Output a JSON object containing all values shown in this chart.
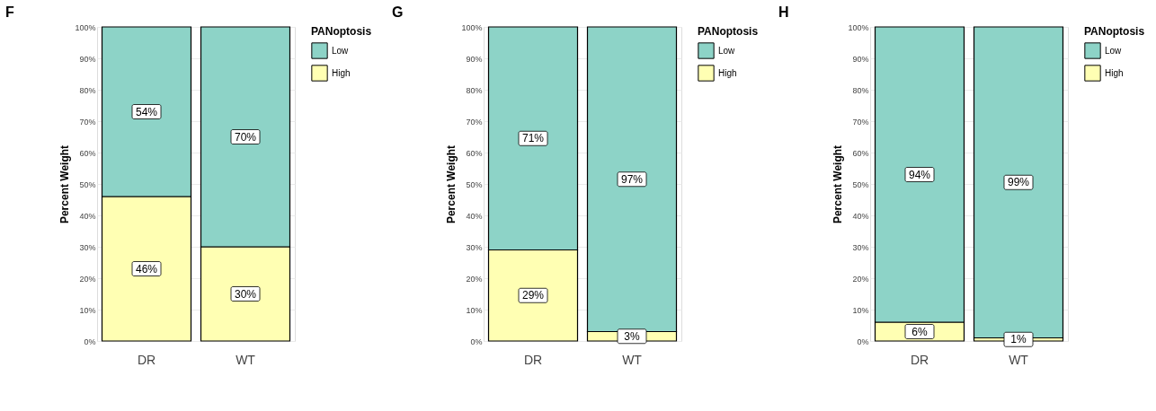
{
  "chart_data": [
    {
      "type": "bar",
      "title": "F",
      "ylabel": "Percent Weight",
      "legend_title": "PANoptosis",
      "categories": [
        "DR",
        "WT"
      ],
      "stacked": true,
      "ylim": [
        0,
        100
      ],
      "yticks": [
        {
          "value": 0,
          "label": "0%"
        },
        {
          "value": 10,
          "label": "10%"
        },
        {
          "value": 20,
          "label": "20%"
        },
        {
          "value": 30,
          "label": "30%"
        },
        {
          "value": 40,
          "label": "40%"
        },
        {
          "value": 50,
          "label": "50%"
        },
        {
          "value": 60,
          "label": "60%"
        },
        {
          "value": 70,
          "label": "70%"
        },
        {
          "value": 80,
          "label": "80%"
        },
        {
          "value": 90,
          "label": "90%"
        },
        {
          "value": 100,
          "label": "100%"
        }
      ],
      "grid": "y",
      "legend": "right",
      "series": [
        {
          "name": "High",
          "color": "#ffffb3",
          "values": [
            46,
            30
          ],
          "value_labels": [
            "46%",
            "30%"
          ]
        },
        {
          "name": "Low",
          "color": "#8dd3c7",
          "values": [
            54,
            70
          ],
          "value_labels": [
            "54%",
            "70%"
          ]
        }
      ]
    },
    {
      "type": "bar",
      "title": "G",
      "ylabel": "Percent Weight",
      "legend_title": "PANoptosis",
      "categories": [
        "DR",
        "WT"
      ],
      "stacked": true,
      "ylim": [
        0,
        100
      ],
      "yticks": [
        {
          "value": 0,
          "label": "0%"
        },
        {
          "value": 10,
          "label": "10%"
        },
        {
          "value": 20,
          "label": "20%"
        },
        {
          "value": 30,
          "label": "30%"
        },
        {
          "value": 40,
          "label": "40%"
        },
        {
          "value": 50,
          "label": "50%"
        },
        {
          "value": 60,
          "label": "60%"
        },
        {
          "value": 70,
          "label": "70%"
        },
        {
          "value": 80,
          "label": "80%"
        },
        {
          "value": 90,
          "label": "90%"
        },
        {
          "value": 100,
          "label": "100%"
        }
      ],
      "grid": "y",
      "legend": "right",
      "series": [
        {
          "name": "High",
          "color": "#ffffb3",
          "values": [
            29,
            3
          ],
          "value_labels": [
            "29%",
            "3%"
          ]
        },
        {
          "name": "Low",
          "color": "#8dd3c7",
          "values": [
            71,
            97
          ],
          "value_labels": [
            "71%",
            "97%"
          ]
        }
      ]
    },
    {
      "type": "bar",
      "title": "H",
      "ylabel": "Percent Weight",
      "legend_title": "PANoptosis",
      "categories": [
        "DR",
        "WT"
      ],
      "stacked": true,
      "ylim": [
        0,
        100
      ],
      "yticks": [
        {
          "value": 0,
          "label": "0%"
        },
        {
          "value": 10,
          "label": "10%"
        },
        {
          "value": 20,
          "label": "20%"
        },
        {
          "value": 30,
          "label": "30%"
        },
        {
          "value": 40,
          "label": "40%"
        },
        {
          "value": 50,
          "label": "50%"
        },
        {
          "value": 60,
          "label": "60%"
        },
        {
          "value": 70,
          "label": "70%"
        },
        {
          "value": 80,
          "label": "80%"
        },
        {
          "value": 90,
          "label": "90%"
        },
        {
          "value": 100,
          "label": "100%"
        }
      ],
      "grid": "y",
      "legend": "right",
      "series": [
        {
          "name": "High",
          "color": "#ffffb3",
          "values": [
            6,
            1
          ],
          "value_labels": [
            "6%",
            "1%"
          ]
        },
        {
          "name": "Low",
          "color": "#8dd3c7",
          "values": [
            94,
            99
          ],
          "value_labels": [
            "94%",
            "99%"
          ]
        }
      ]
    }
  ]
}
